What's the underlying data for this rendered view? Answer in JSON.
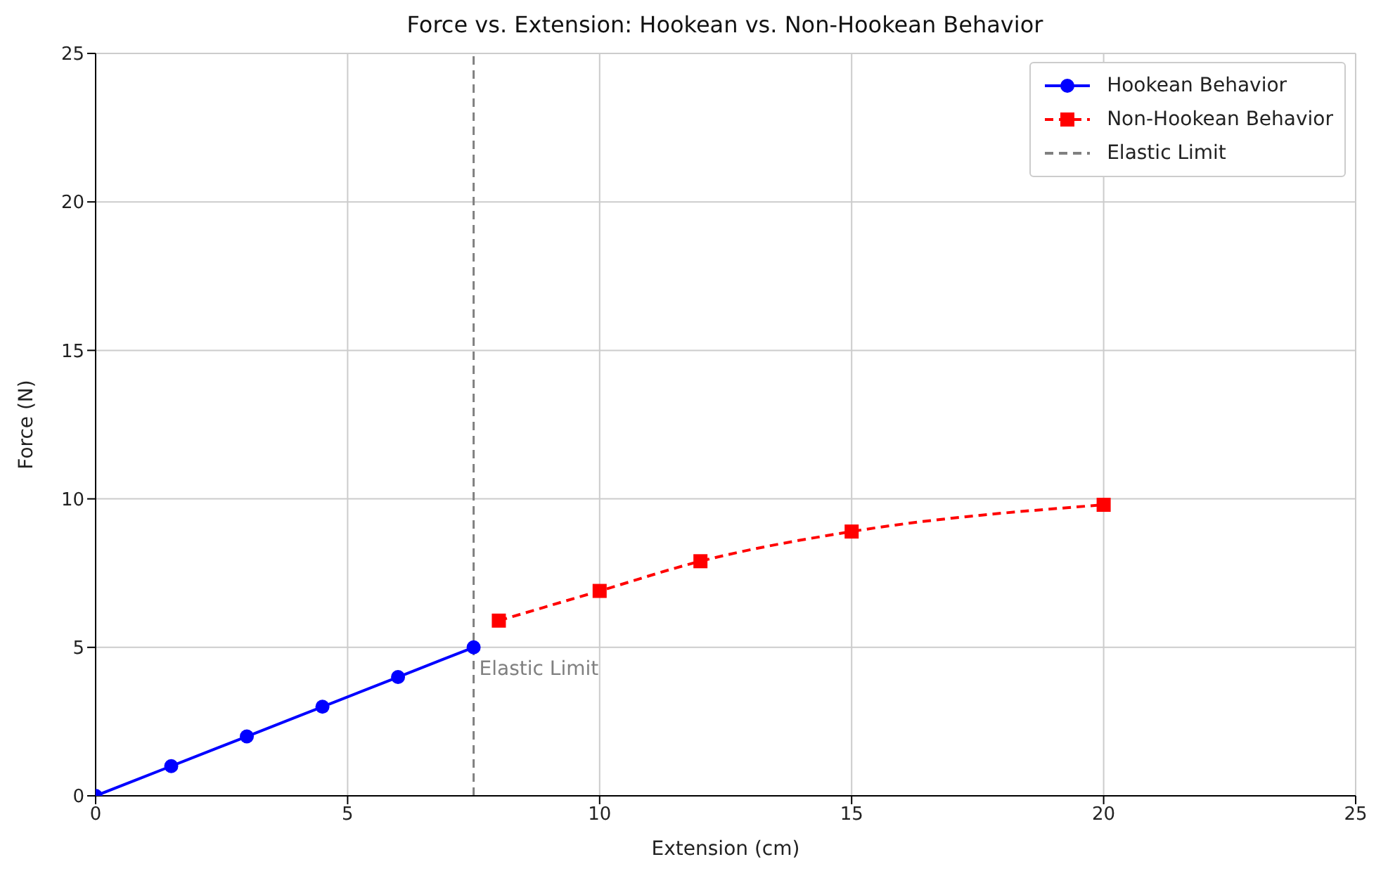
{
  "chart_data": {
    "type": "line",
    "title": "Force vs. Extension: Hookean vs. Non-Hookean Behavior",
    "xlabel": "Extension (cm)",
    "ylabel": "Force (N)",
    "xlim": [
      0,
      25
    ],
    "ylim": [
      0,
      25
    ],
    "xticks": [
      0,
      5,
      10,
      15,
      20,
      25
    ],
    "yticks": [
      0,
      5,
      10,
      15,
      20,
      25
    ],
    "grid": true,
    "legend": "top right",
    "series": [
      {
        "name": "Hookean Behavior",
        "color": "#0000ff",
        "marker": "circle",
        "line_style": "solid",
        "x": [
          0,
          1.5,
          3,
          4.5,
          6,
          7.5
        ],
        "values": [
          0,
          1,
          2,
          3,
          4,
          5
        ]
      },
      {
        "name": "Non-Hookean Behavior",
        "color": "#ff0000",
        "marker": "square",
        "line_style": "dashed",
        "x": [
          8,
          10,
          12,
          15,
          20
        ],
        "values": [
          5.9,
          6.9,
          7.9,
          8.9,
          9.8
        ]
      }
    ],
    "ref_lines": [
      {
        "axis": "x",
        "value": 7.5,
        "label": "Elastic Limit",
        "color": "#808080",
        "line_style": "dashed"
      }
    ]
  }
}
